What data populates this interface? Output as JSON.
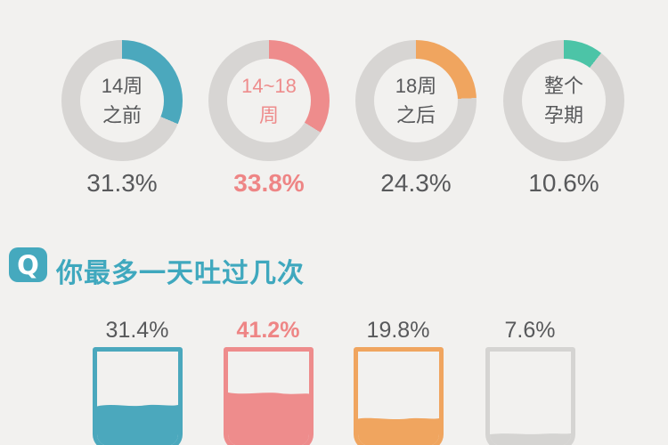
{
  "page": {
    "background": "#F2F1EF"
  },
  "colors": {
    "track_gray": "#D7D5D3",
    "text_dark": "#58595B",
    "teal": "#4BA8BD",
    "red": "#EE8C8C",
    "orange": "#F0A55F",
    "green": "#4CC4A7",
    "cup_gray": "#D5D4D2",
    "header_teal": "#3FA8BE"
  },
  "donuts": [
    {
      "label_lines": [
        "14周",
        "之前"
      ],
      "percent": "31.3%",
      "value": 31.3,
      "color": "#4BA8BD",
      "emphasis": false
    },
    {
      "label_lines": [
        "14~18",
        "周"
      ],
      "percent": "33.8%",
      "value": 33.8,
      "color": "#EE8C8C",
      "emphasis": true
    },
    {
      "label_lines": [
        "18周",
        "之后"
      ],
      "percent": "24.3%",
      "value": 24.3,
      "color": "#F0A55F",
      "emphasis": false
    },
    {
      "label_lines": [
        "整个",
        "孕期"
      ],
      "percent": "10.6%",
      "value": 10.6,
      "color": "#4CC4A7",
      "emphasis": false
    }
  ],
  "question": {
    "badge": "Q",
    "title": "你最多一天吐过几次"
  },
  "cups": [
    {
      "percent": "31.4%",
      "value": 31.4,
      "color": "#4BA8BD",
      "emphasis": false
    },
    {
      "percent": "41.2%",
      "value": 41.2,
      "color": "#EE8C8C",
      "emphasis": true
    },
    {
      "percent": "19.8%",
      "value": 19.8,
      "color": "#F0A55F",
      "emphasis": false
    },
    {
      "percent": "7.6%",
      "value": 7.6,
      "color": "#D5D4D2",
      "emphasis": false
    }
  ],
  "chart_data": [
    {
      "type": "pie",
      "subtype": "donut-multiples",
      "unit": "%",
      "categories": [
        "14周之前",
        "14~18周",
        "18周之后",
        "整个孕期"
      ],
      "values": [
        31.3,
        33.8,
        24.3,
        10.6
      ],
      "colors": [
        "#4BA8BD",
        "#EE8C8C",
        "#F0A55F",
        "#4CC4A7"
      ],
      "track_color": "#D7D5D3",
      "highlighted_index": 1,
      "start_angle_deg": 0,
      "direction": "clockwise",
      "labels_inside": true
    },
    {
      "type": "bar",
      "subtype": "cup-fill",
      "title": "你最多一天吐过几次",
      "unit": "%",
      "values": [
        31.4,
        41.2,
        19.8,
        7.6
      ],
      "colors": [
        "#4BA8BD",
        "#EE8C8C",
        "#F0A55F",
        "#D5D4D2"
      ],
      "highlighted_index": 1,
      "categories_visible": false,
      "note_layout": "cups cropped at bottom edge of image"
    }
  ]
}
